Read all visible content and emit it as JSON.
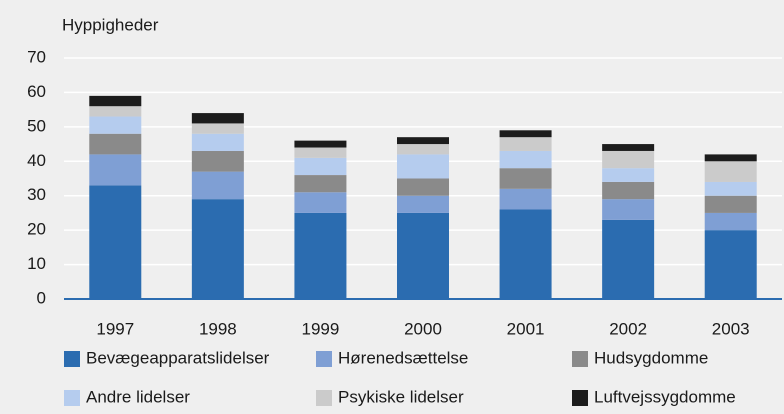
{
  "chart_data": {
    "type": "stacked_bar",
    "y_axis_label": "Hyppigheder",
    "categories": [
      "1997",
      "1998",
      "1999",
      "2000",
      "2001",
      "2002",
      "2003"
    ],
    "series": [
      {
        "name": "Bevægeapparatslidelser",
        "color": "#2b6cb0",
        "values": [
          33,
          29,
          25,
          25,
          26,
          23,
          20
        ]
      },
      {
        "name": "Hørenedsættelse",
        "color": "#7f9fd4",
        "values": [
          9,
          8,
          6,
          5,
          6,
          6,
          5
        ]
      },
      {
        "name": "Hudsygdomme",
        "color": "#8a8a8a",
        "values": [
          6,
          6,
          5,
          5,
          6,
          5,
          5
        ]
      },
      {
        "name": "Andre lidelser",
        "color": "#b5ccee",
        "values": [
          5,
          5,
          5,
          7,
          5,
          4,
          4
        ]
      },
      {
        "name": "Psykiske lidelser",
        "color": "#cbcbcb",
        "values": [
          3,
          3,
          3,
          3,
          4,
          5,
          6
        ]
      },
      {
        "name": "Luftvejssygdomme",
        "color": "#1c1c1c",
        "values": [
          3,
          3,
          2,
          2,
          2,
          2,
          2
        ]
      }
    ],
    "ylim": [
      0,
      70
    ],
    "yticks": [
      0,
      10,
      20,
      30,
      40,
      50,
      60,
      70
    ],
    "grid": true
  }
}
